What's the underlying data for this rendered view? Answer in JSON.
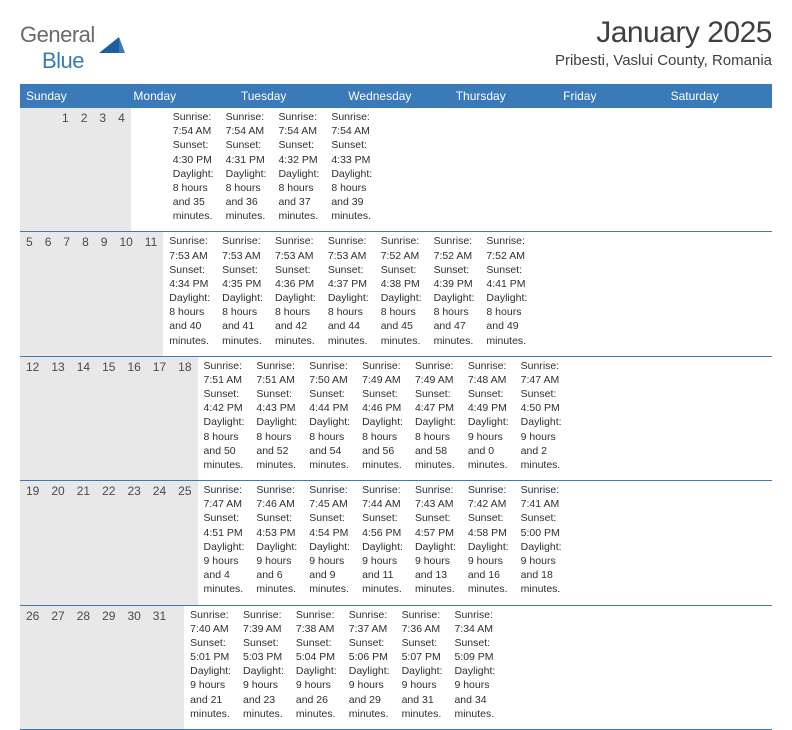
{
  "logo": {
    "general": "General",
    "blue": "Blue"
  },
  "title": "January 2025",
  "location": "Pribesti, Vaslui County, Romania",
  "colors": {
    "header_bg": "#3a7ab8",
    "header_text": "#ffffff",
    "daynum_bg": "#e8e8e8",
    "text": "#323232",
    "divider": "#3a7ab8"
  },
  "weekdays": [
    "Sunday",
    "Monday",
    "Tuesday",
    "Wednesday",
    "Thursday",
    "Friday",
    "Saturday"
  ],
  "weeks": [
    [
      {
        "num": "",
        "lines": []
      },
      {
        "num": "",
        "lines": []
      },
      {
        "num": "",
        "lines": []
      },
      {
        "num": "1",
        "lines": [
          "Sunrise: 7:54 AM",
          "Sunset: 4:30 PM",
          "Daylight: 8 hours",
          "and 35 minutes."
        ]
      },
      {
        "num": "2",
        "lines": [
          "Sunrise: 7:54 AM",
          "Sunset: 4:31 PM",
          "Daylight: 8 hours",
          "and 36 minutes."
        ]
      },
      {
        "num": "3",
        "lines": [
          "Sunrise: 7:54 AM",
          "Sunset: 4:32 PM",
          "Daylight: 8 hours",
          "and 37 minutes."
        ]
      },
      {
        "num": "4",
        "lines": [
          "Sunrise: 7:54 AM",
          "Sunset: 4:33 PM",
          "Daylight: 8 hours",
          "and 39 minutes."
        ]
      }
    ],
    [
      {
        "num": "5",
        "lines": [
          "Sunrise: 7:53 AM",
          "Sunset: 4:34 PM",
          "Daylight: 8 hours",
          "and 40 minutes."
        ]
      },
      {
        "num": "6",
        "lines": [
          "Sunrise: 7:53 AM",
          "Sunset: 4:35 PM",
          "Daylight: 8 hours",
          "and 41 minutes."
        ]
      },
      {
        "num": "7",
        "lines": [
          "Sunrise: 7:53 AM",
          "Sunset: 4:36 PM",
          "Daylight: 8 hours",
          "and 42 minutes."
        ]
      },
      {
        "num": "8",
        "lines": [
          "Sunrise: 7:53 AM",
          "Sunset: 4:37 PM",
          "Daylight: 8 hours",
          "and 44 minutes."
        ]
      },
      {
        "num": "9",
        "lines": [
          "Sunrise: 7:52 AM",
          "Sunset: 4:38 PM",
          "Daylight: 8 hours",
          "and 45 minutes."
        ]
      },
      {
        "num": "10",
        "lines": [
          "Sunrise: 7:52 AM",
          "Sunset: 4:39 PM",
          "Daylight: 8 hours",
          "and 47 minutes."
        ]
      },
      {
        "num": "11",
        "lines": [
          "Sunrise: 7:52 AM",
          "Sunset: 4:41 PM",
          "Daylight: 8 hours",
          "and 49 minutes."
        ]
      }
    ],
    [
      {
        "num": "12",
        "lines": [
          "Sunrise: 7:51 AM",
          "Sunset: 4:42 PM",
          "Daylight: 8 hours",
          "and 50 minutes."
        ]
      },
      {
        "num": "13",
        "lines": [
          "Sunrise: 7:51 AM",
          "Sunset: 4:43 PM",
          "Daylight: 8 hours",
          "and 52 minutes."
        ]
      },
      {
        "num": "14",
        "lines": [
          "Sunrise: 7:50 AM",
          "Sunset: 4:44 PM",
          "Daylight: 8 hours",
          "and 54 minutes."
        ]
      },
      {
        "num": "15",
        "lines": [
          "Sunrise: 7:49 AM",
          "Sunset: 4:46 PM",
          "Daylight: 8 hours",
          "and 56 minutes."
        ]
      },
      {
        "num": "16",
        "lines": [
          "Sunrise: 7:49 AM",
          "Sunset: 4:47 PM",
          "Daylight: 8 hours",
          "and 58 minutes."
        ]
      },
      {
        "num": "17",
        "lines": [
          "Sunrise: 7:48 AM",
          "Sunset: 4:49 PM",
          "Daylight: 9 hours",
          "and 0 minutes."
        ]
      },
      {
        "num": "18",
        "lines": [
          "Sunrise: 7:47 AM",
          "Sunset: 4:50 PM",
          "Daylight: 9 hours",
          "and 2 minutes."
        ]
      }
    ],
    [
      {
        "num": "19",
        "lines": [
          "Sunrise: 7:47 AM",
          "Sunset: 4:51 PM",
          "Daylight: 9 hours",
          "and 4 minutes."
        ]
      },
      {
        "num": "20",
        "lines": [
          "Sunrise: 7:46 AM",
          "Sunset: 4:53 PM",
          "Daylight: 9 hours",
          "and 6 minutes."
        ]
      },
      {
        "num": "21",
        "lines": [
          "Sunrise: 7:45 AM",
          "Sunset: 4:54 PM",
          "Daylight: 9 hours",
          "and 9 minutes."
        ]
      },
      {
        "num": "22",
        "lines": [
          "Sunrise: 7:44 AM",
          "Sunset: 4:56 PM",
          "Daylight: 9 hours",
          "and 11 minutes."
        ]
      },
      {
        "num": "23",
        "lines": [
          "Sunrise: 7:43 AM",
          "Sunset: 4:57 PM",
          "Daylight: 9 hours",
          "and 13 minutes."
        ]
      },
      {
        "num": "24",
        "lines": [
          "Sunrise: 7:42 AM",
          "Sunset: 4:58 PM",
          "Daylight: 9 hours",
          "and 16 minutes."
        ]
      },
      {
        "num": "25",
        "lines": [
          "Sunrise: 7:41 AM",
          "Sunset: 5:00 PM",
          "Daylight: 9 hours",
          "and 18 minutes."
        ]
      }
    ],
    [
      {
        "num": "26",
        "lines": [
          "Sunrise: 7:40 AM",
          "Sunset: 5:01 PM",
          "Daylight: 9 hours",
          "and 21 minutes."
        ]
      },
      {
        "num": "27",
        "lines": [
          "Sunrise: 7:39 AM",
          "Sunset: 5:03 PM",
          "Daylight: 9 hours",
          "and 23 minutes."
        ]
      },
      {
        "num": "28",
        "lines": [
          "Sunrise: 7:38 AM",
          "Sunset: 5:04 PM",
          "Daylight: 9 hours",
          "and 26 minutes."
        ]
      },
      {
        "num": "29",
        "lines": [
          "Sunrise: 7:37 AM",
          "Sunset: 5:06 PM",
          "Daylight: 9 hours",
          "and 29 minutes."
        ]
      },
      {
        "num": "30",
        "lines": [
          "Sunrise: 7:36 AM",
          "Sunset: 5:07 PM",
          "Daylight: 9 hours",
          "and 31 minutes."
        ]
      },
      {
        "num": "31",
        "lines": [
          "Sunrise: 7:34 AM",
          "Sunset: 5:09 PM",
          "Daylight: 9 hours",
          "and 34 minutes."
        ]
      },
      {
        "num": "",
        "lines": []
      }
    ]
  ]
}
